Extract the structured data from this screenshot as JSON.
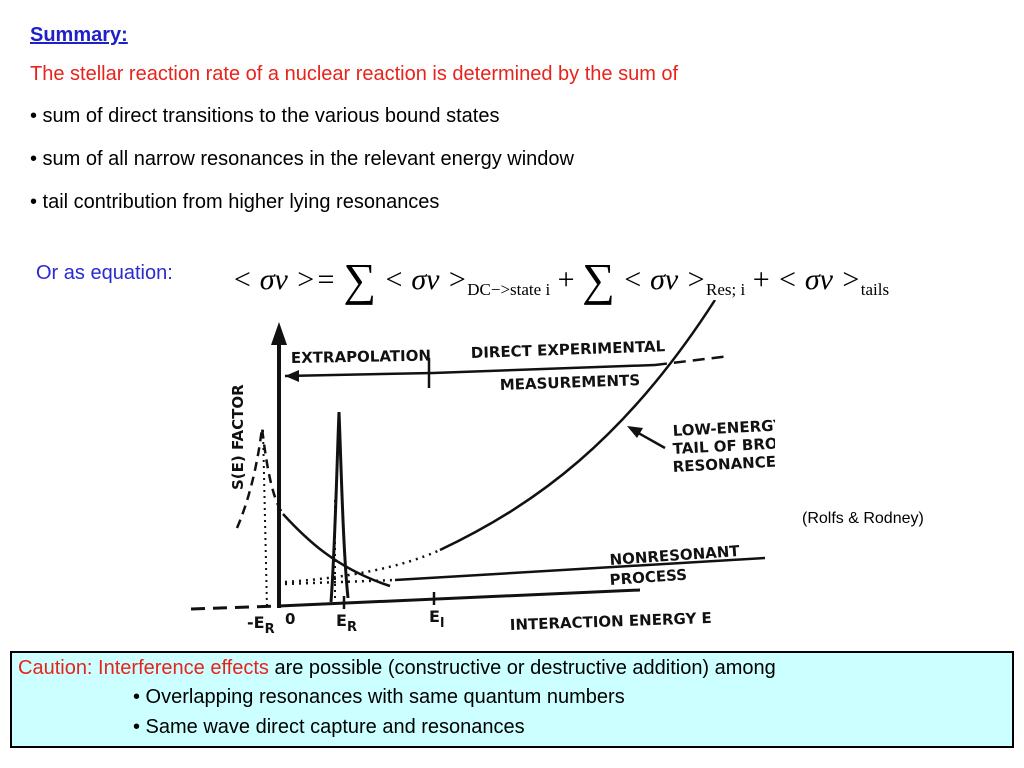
{
  "colors": {
    "title": "#2020c8",
    "intro": "#e8231b",
    "eq_label": "#2a2ad0",
    "caution_highlight": "#e8231b",
    "caution_background": "#ccffff"
  },
  "header": {
    "title": "Summary:",
    "intro": "The stellar reaction rate of a nuclear reaction is determined by the sum of"
  },
  "bullets": [
    "• sum of direct transitions to the various bound states",
    "• sum of all narrow resonances in the relevant energy window",
    "• tail contribution from higher lying resonances"
  ],
  "equation": {
    "label": "Or as equation:",
    "lhs": "< σv >=",
    "term_open": "< σv >",
    "sub_dc": "DC−>state i",
    "sub_res": "Res; i",
    "sub_tails": "tails",
    "plus": "+",
    "sum": "∑"
  },
  "diagram": {
    "y_axis_label": "S(E) FACTOR",
    "x_axis_label": "INTERACTION ENERGY E",
    "extrapolation": "EXTRAPOLATION",
    "direct_line1": "DIRECT EXPERIMENTAL",
    "direct_line2": "MEASUREMENTS",
    "tail_line1": "LOW-ENERGY",
    "tail_line2": "TAIL OF BROAD",
    "tail_line3": "RESONANCE",
    "nonres_line1": "NONRESONANT",
    "nonres_line2": "PROCESS",
    "tick_neg_er": "-E",
    "tick_neg_er_sub": "R",
    "tick_zero": "0",
    "tick_er": "E",
    "tick_er_sub": "R",
    "tick_el": "E",
    "tick_el_sub": "l"
  },
  "reference": "(Rolfs & Rodney)",
  "caution": {
    "highlight": "Caution: Interference effects",
    "rest": " are possible (constructive or destructive addition) among",
    "items": [
      "• Overlapping resonances with same quantum numbers",
      "• Same wave direct capture and resonances"
    ]
  }
}
